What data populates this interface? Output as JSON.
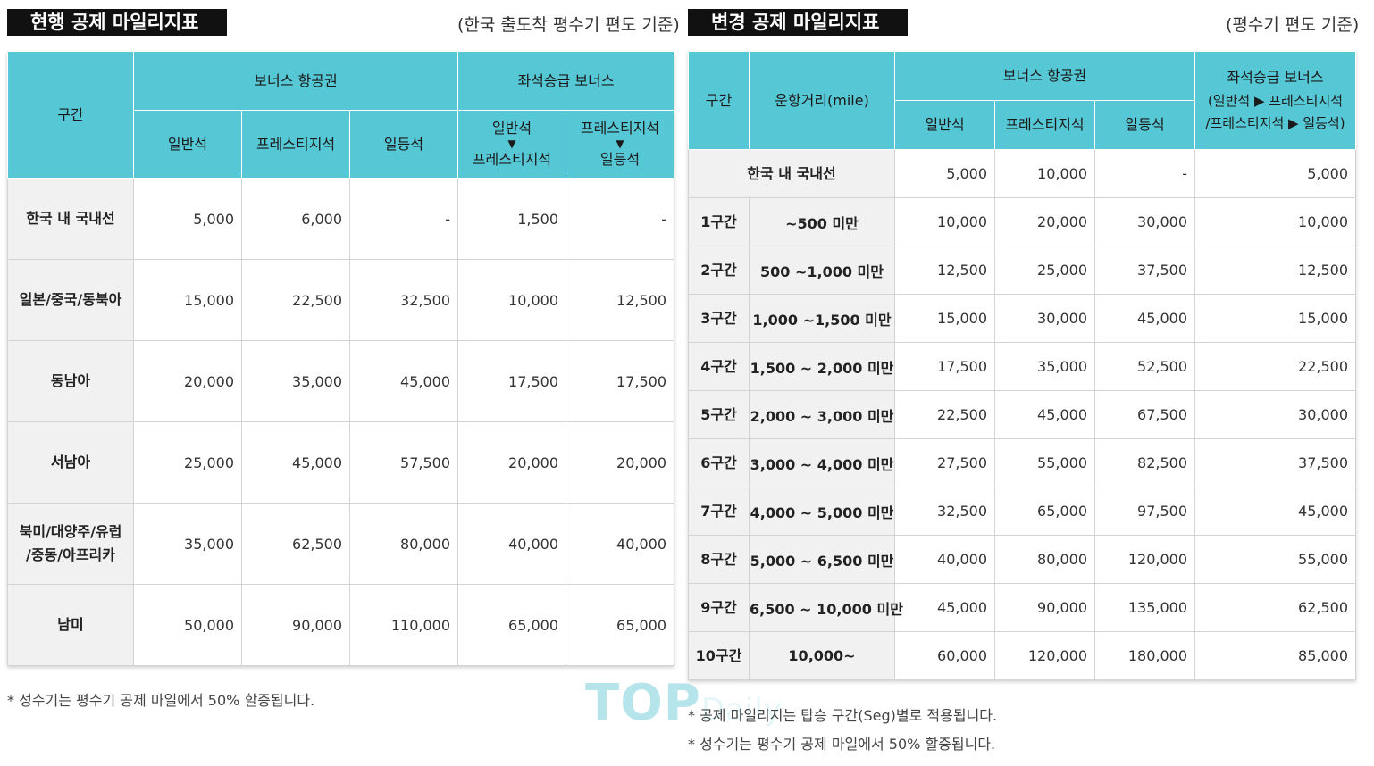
{
  "left": {
    "title": "현행 공제 마일리지표",
    "basis": "(한국 출도착 평수기 편도 기준)",
    "headers": {
      "section": "구간",
      "bonus_ticket": "보너스 항공권",
      "upgrade": "좌석승급 보너스",
      "economy": "일반석",
      "prestige": "프레스티지석",
      "first": "일등석",
      "up1_from": "일반석",
      "up1_arrow": "▼",
      "up1_to": "프레스티지석",
      "up2_from": "프레스티지석",
      "up2_arrow": "▼",
      "up2_to": "일등석"
    },
    "rows": [
      {
        "label": "한국 내 국내선",
        "values": [
          "5,000",
          "6,000",
          "-",
          "1,500",
          "-"
        ]
      },
      {
        "label": "일본/중국/동북아",
        "values": [
          "15,000",
          "22,500",
          "32,500",
          "10,000",
          "12,500"
        ]
      },
      {
        "label": "동남아",
        "values": [
          "20,000",
          "35,000",
          "45,000",
          "17,500",
          "17,500"
        ]
      },
      {
        "label": "서남아",
        "values": [
          "25,000",
          "45,000",
          "57,500",
          "20,000",
          "20,000"
        ]
      },
      {
        "label": "북미/대양주/유럽/중동/아프리카",
        "label_line1": "북미/대양주/유럽",
        "label_line2": "/중동/아프리카",
        "values": [
          "35,000",
          "62,500",
          "80,000",
          "40,000",
          "40,000"
        ]
      },
      {
        "label": "남미",
        "values": [
          "50,000",
          "90,000",
          "110,000",
          "65,000",
          "65,000"
        ]
      }
    ],
    "note": "* 성수기는 평수기 공제 마일에서 50% 할증됩니다."
  },
  "right": {
    "title": "변경 공제 마일리지표",
    "basis": "(평수기 편도 기준)",
    "headers": {
      "section": "구간",
      "distance": "운항거리(mile)",
      "bonus_ticket": "보너스 항공권",
      "upgrade_line1": "좌석승급 보너스",
      "upgrade_line2": "(일반석 ▶ 프레스티지석",
      "upgrade_line3": "/프레스티지석 ▶ 일등석)",
      "economy": "일반석",
      "prestige": "프레스티지석",
      "first": "일등석"
    },
    "domestic": {
      "label": "한국 내 국내선",
      "values": [
        "5,000",
        "10,000",
        "-",
        "5,000"
      ]
    },
    "rows": [
      {
        "seg": "1구간",
        "range": "~500 미만",
        "values": [
          "10,000",
          "20,000",
          "30,000",
          "10,000"
        ]
      },
      {
        "seg": "2구간",
        "range": "500 ~1,000 미만",
        "values": [
          "12,500",
          "25,000",
          "37,500",
          "12,500"
        ]
      },
      {
        "seg": "3구간",
        "range": "1,000 ~1,500 미만",
        "values": [
          "15,000",
          "30,000",
          "45,000",
          "15,000"
        ]
      },
      {
        "seg": "4구간",
        "range": "1,500 ~ 2,000 미만",
        "values": [
          "17,500",
          "35,000",
          "52,500",
          "22,500"
        ]
      },
      {
        "seg": "5구간",
        "range": "2,000 ~ 3,000 미만",
        "values": [
          "22,500",
          "45,000",
          "67,500",
          "30,000"
        ]
      },
      {
        "seg": "6구간",
        "range": "3,000 ~ 4,000 미만",
        "values": [
          "27,500",
          "55,000",
          "82,500",
          "37,500"
        ]
      },
      {
        "seg": "7구간",
        "range": "4,000 ~ 5,000 미만",
        "values": [
          "32,500",
          "65,000",
          "97,500",
          "45,000"
        ]
      },
      {
        "seg": "8구간",
        "range": "5,000 ~ 6,500 미만",
        "values": [
          "40,000",
          "80,000",
          "120,000",
          "55,000"
        ]
      },
      {
        "seg": "9구간",
        "range": "6,500 ~ 10,000 미만",
        "values": [
          "45,000",
          "90,000",
          "135,000",
          "62,500"
        ]
      },
      {
        "seg": "10구간",
        "range": "10,000~",
        "values": [
          "60,000",
          "120,000",
          "180,000",
          "85,000"
        ]
      }
    ],
    "note1": "* 공제 마일리지는 탑승 구간(Seg)별로 적용됩니다.",
    "note2": "* 성수기는 평수기 공제 마일에서 50% 할증됩니다."
  },
  "watermark": {
    "main": "TOP",
    "rest": "Daily"
  }
}
